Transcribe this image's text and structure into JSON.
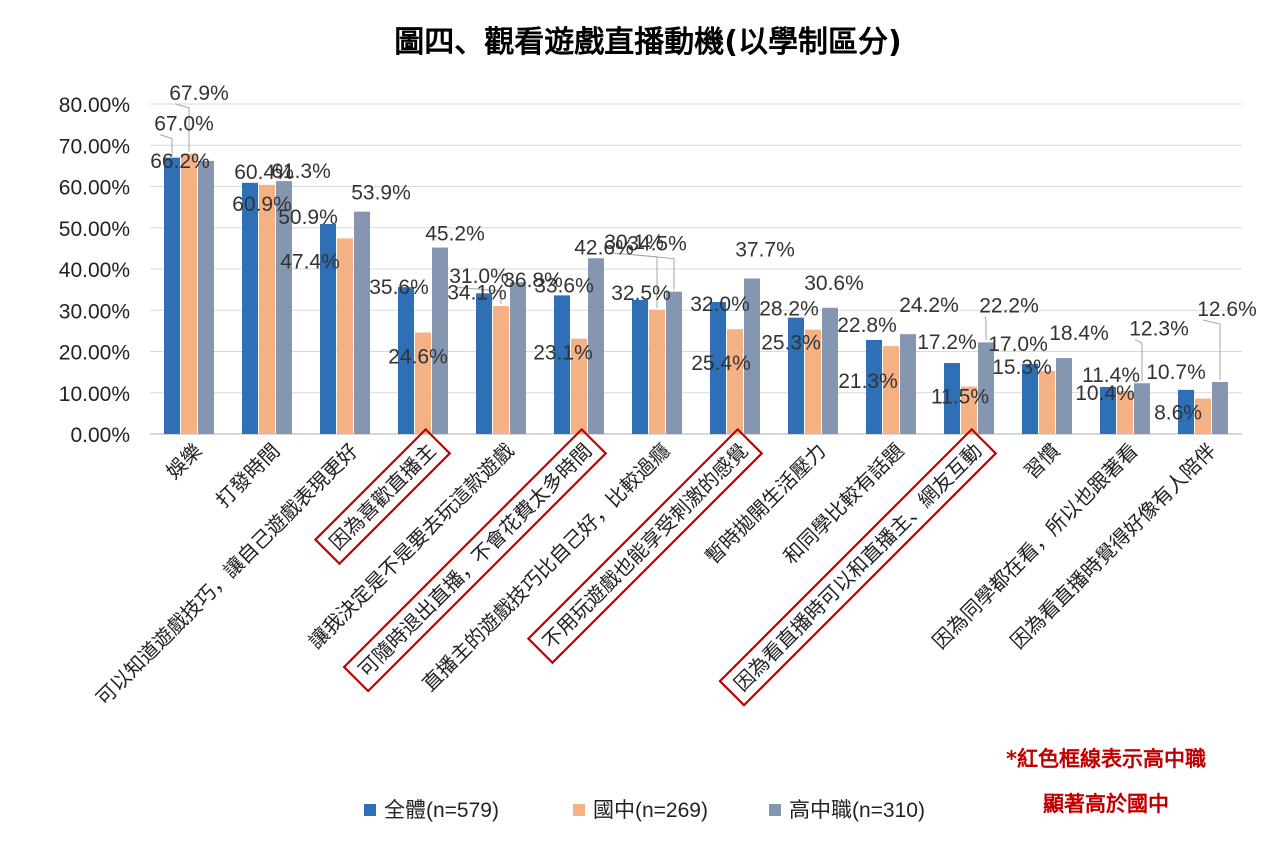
{
  "chart_data": {
    "type": "bar",
    "title": "圖四、觀看遊戲直播動機(以學制區分)",
    "ylim": [
      0,
      80
    ],
    "yticks": [
      "0.00%",
      "10.00%",
      "20.00%",
      "30.00%",
      "40.00%",
      "50.00%",
      "60.00%",
      "70.00%",
      "80.00%"
    ],
    "categories": [
      "娛樂",
      "打發時間",
      "可以知道遊戲技巧，讓自己遊戲表現更好",
      "因為喜歡直播主",
      "讓我決定是不是要去玩這款遊戲",
      "可隨時退出直播，不會花費太多時間",
      "直播主的遊戲技巧比自己好，比較過癮",
      "不用玩遊戲也能享受刺激的感覺",
      "暫時拋開生活壓力",
      "和同學比較有話題",
      "因為看直播時可以和直播主、網友互動",
      "習慣",
      "因為同學都在看，所以也跟著看",
      "因為看直播時覺得好像有人陪伴"
    ],
    "series": [
      {
        "name": "全體(n=579)",
        "color": "#2e6fb5",
        "values": [
          67.0,
          60.9,
          50.9,
          35.6,
          34.1,
          33.6,
          32.5,
          32.0,
          28.2,
          22.8,
          17.2,
          17.0,
          11.4,
          10.7
        ],
        "labels": [
          "67.0%",
          "60.9%",
          "50.9%",
          "35.6%",
          "34.1%",
          "33.6%",
          "32.5%",
          "32.0%",
          "28.2%",
          "22.8%",
          "17.2%",
          "17.0%",
          "11.4%",
          "10.7%"
        ]
      },
      {
        "name": "國中(n=269)",
        "color": "#f4b183",
        "values": [
          67.9,
          60.4,
          47.4,
          24.6,
          31.0,
          23.1,
          30.1,
          25.4,
          25.3,
          21.3,
          11.5,
          15.3,
          10.4,
          8.6
        ],
        "labels": [
          "67.9%",
          "60.4%",
          "47.4%",
          "24.6%",
          "31.0%",
          "23.1%",
          "30.1%",
          "25.4%",
          "25.3%",
          "21.3%",
          "11.5%",
          "15.3%",
          "10.4%",
          "8.6%"
        ]
      },
      {
        "name": "高中職(n=310)",
        "color": "#8496b0",
        "values": [
          66.2,
          61.3,
          53.9,
          45.2,
          36.8,
          42.6,
          34.5,
          37.7,
          30.6,
          24.2,
          22.2,
          18.4,
          12.3,
          12.6
        ],
        "labels": [
          "66.2%",
          "61.3%",
          "53.9%",
          "45.2%",
          "36.8%",
          "42.6%",
          "34.5%",
          "37.7%",
          "30.6%",
          "24.2%",
          "22.2%",
          "18.4%",
          "12.3%",
          "12.6%"
        ]
      }
    ],
    "highlighted_categories": [
      3,
      5,
      7,
      10
    ],
    "legend_position": "bottom"
  },
  "note": {
    "line1": "*紅色框線表示高中職",
    "line2": "顯著高於國中",
    "color": "#c00000"
  }
}
